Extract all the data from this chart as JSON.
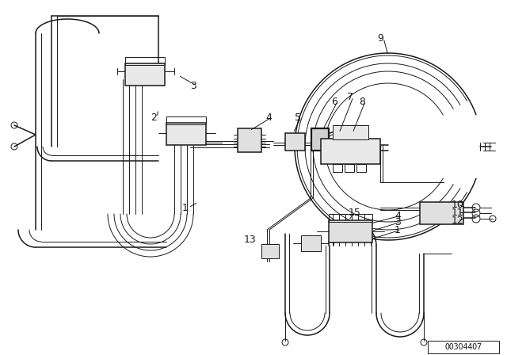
{
  "bg_color": "#ffffff",
  "line_color": "#1a1a1a",
  "doc_number": "OO3O44O7",
  "lw_thick": 1.6,
  "lw_med": 1.1,
  "lw_thin": 0.7
}
